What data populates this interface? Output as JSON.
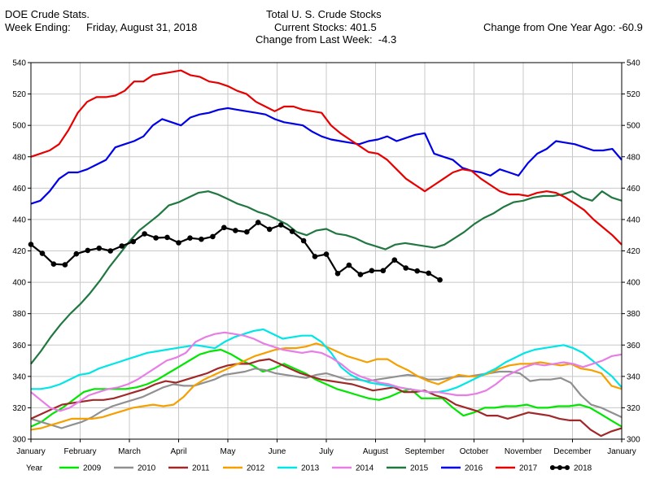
{
  "header": {
    "source": "DOE Crude Stats.",
    "week_label": "Week Ending:",
    "week_date": "Friday, August 31, 2018",
    "title": "Total U. S. Crude Stocks",
    "current_stocks": "Current Stocks: 401.5",
    "change_last_week": "Change from Last Week:  -4.3",
    "change_year_ago": "Change from One Year Ago: -60.9"
  },
  "chart_data": {
    "type": "line",
    "ylim": [
      300,
      540
    ],
    "y_ticks": [
      300,
      320,
      340,
      360,
      380,
      400,
      420,
      440,
      460,
      480,
      500,
      520,
      540
    ],
    "x_range_weeks": [
      0,
      52
    ],
    "month_labels": [
      "January",
      "February",
      "March",
      "April",
      "May",
      "June",
      "July",
      "August",
      "September",
      "October",
      "November",
      "December",
      "January"
    ],
    "grid": true,
    "legend_title": "Year",
    "legend_position": "bottom",
    "series": [
      {
        "name": "2009",
        "color": "#00e600",
        "markers": false,
        "values": [
          308,
          311,
          316,
          320,
          325,
          330,
          332,
          332,
          332,
          332,
          333,
          335,
          338,
          342,
          346,
          350,
          354,
          356,
          357,
          354,
          350,
          347,
          343,
          345,
          348,
          345,
          342,
          338,
          335,
          332,
          330,
          328,
          326,
          325,
          327,
          330,
          332,
          326,
          326,
          326,
          320,
          315,
          317,
          320,
          320,
          321,
          321,
          322,
          320,
          320,
          321,
          321,
          322,
          320,
          316,
          312,
          308
        ]
      },
      {
        "name": "2010",
        "color": "#909090",
        "markers": false,
        "values": [
          313,
          311,
          309,
          307,
          309,
          311,
          314,
          318,
          321,
          323,
          325,
          327,
          330,
          333,
          335,
          334,
          334,
          336,
          338,
          341,
          342,
          343,
          345,
          344,
          342,
          341,
          340,
          339,
          341,
          342,
          340,
          338,
          338,
          337,
          338,
          339,
          340,
          341,
          340,
          338,
          338,
          339,
          340,
          340,
          341,
          342,
          343,
          343,
          342,
          337,
          338,
          338,
          339,
          336,
          328,
          322,
          320,
          317,
          314
        ]
      },
      {
        "name": "2011",
        "color": "#a02828",
        "markers": false,
        "values": [
          313,
          316,
          319,
          322,
          323,
          324,
          325,
          325,
          326,
          328,
          330,
          332,
          335,
          337,
          336,
          338,
          340,
          342,
          345,
          347,
          348,
          348,
          350,
          351,
          348,
          345,
          342,
          340,
          338,
          337,
          336,
          335,
          333,
          331,
          332,
          333,
          330,
          330,
          331,
          328,
          326,
          322,
          320,
          318,
          315,
          315,
          313,
          315,
          317,
          316,
          315,
          313,
          312,
          312,
          306,
          302,
          305,
          307
        ]
      },
      {
        "name": "2012",
        "color": "#f5a000",
        "markers": false,
        "values": [
          306,
          307,
          309,
          311,
          313,
          313,
          313,
          314,
          316,
          318,
          320,
          321,
          322,
          321,
          322,
          327,
          334,
          338,
          341,
          344,
          347,
          350,
          353,
          355,
          357,
          358,
          358,
          359,
          361,
          359,
          356,
          353,
          351,
          349,
          351,
          351,
          347,
          344,
          340,
          337,
          335,
          338,
          341,
          340,
          340,
          342,
          345,
          347,
          348,
          348,
          349,
          348,
          347,
          348,
          345,
          344,
          342,
          334,
          332
        ]
      },
      {
        "name": "2013",
        "color": "#00e6e6",
        "markers": false,
        "values": [
          332,
          332,
          333,
          335,
          338,
          341,
          342,
          345,
          347,
          349,
          351,
          353,
          355,
          356,
          357,
          358,
          359,
          360,
          359,
          358,
          362,
          365,
          367,
          369,
          370,
          367,
          364,
          365,
          366,
          366,
          362,
          355,
          346,
          341,
          338,
          336,
          335,
          334,
          333,
          332,
          331,
          330,
          330,
          331,
          333,
          336,
          339,
          342,
          345,
          349,
          352,
          355,
          357,
          358,
          359,
          360,
          358,
          355,
          350,
          345,
          340,
          333
        ]
      },
      {
        "name": "2014",
        "color": "#e67ee6",
        "markers": false,
        "values": [
          330,
          325,
          320,
          318,
          320,
          324,
          328,
          330,
          332,
          333,
          335,
          338,
          342,
          346,
          350,
          352,
          355,
          362,
          365,
          367,
          368,
          367,
          366,
          364,
          361,
          359,
          357,
          356,
          355,
          356,
          355,
          352,
          348,
          343,
          340,
          338,
          336,
          335,
          333,
          332,
          331,
          330,
          330,
          329,
          328,
          328,
          329,
          331,
          335,
          340,
          343,
          346,
          348,
          347,
          348,
          349,
          348,
          346,
          348,
          350,
          353,
          354
        ]
      },
      {
        "name": "2015",
        "color": "#207840",
        "markers": false,
        "values": [
          348,
          356,
          365,
          373,
          380,
          386,
          393,
          401,
          410,
          418,
          426,
          433,
          438,
          443,
          449,
          451,
          454,
          457,
          458,
          456,
          453,
          450,
          448,
          445,
          443,
          440,
          437,
          432,
          430,
          433,
          434,
          431,
          430,
          428,
          425,
          423,
          421,
          424,
          425,
          424,
          423,
          422,
          424,
          428,
          432,
          437,
          441,
          444,
          448,
          451,
          452,
          454,
          455,
          455,
          456,
          458,
          454,
          452,
          458,
          454,
          452
        ]
      },
      {
        "name": "2016",
        "color": "#0000e6",
        "markers": false,
        "values": [
          450,
          452,
          458,
          466,
          470,
          470,
          472,
          475,
          478,
          486,
          488,
          490,
          493,
          500,
          504,
          502,
          500,
          505,
          507,
          508,
          510,
          511,
          510,
          509,
          508,
          507,
          504,
          502,
          501,
          500,
          496,
          493,
          491,
          490,
          489,
          488,
          490,
          491,
          493,
          490,
          492,
          494,
          495,
          482,
          480,
          478,
          473,
          471,
          470,
          468,
          472,
          470,
          468,
          476,
          482,
          485,
          490,
          489,
          488,
          486,
          484,
          484,
          485,
          478
        ]
      },
      {
        "name": "2017",
        "color": "#e60000",
        "markers": false,
        "values": [
          480,
          482,
          484,
          488,
          497,
          508,
          515,
          518,
          518,
          519,
          522,
          528,
          528,
          532,
          533,
          534,
          535,
          532,
          531,
          528,
          527,
          525,
          522,
          520,
          515,
          512,
          509,
          512,
          512,
          510,
          509,
          508,
          500,
          495,
          491,
          487,
          483,
          482,
          478,
          472,
          466,
          462,
          458,
          462,
          466,
          470,
          472,
          471,
          466,
          462,
          458,
          456,
          456,
          455,
          457,
          458,
          457,
          454,
          450,
          446,
          440,
          435,
          430,
          424
        ]
      },
      {
        "name": "2018",
        "color": "#000000",
        "markers": true,
        "values": [
          424.1,
          418.4,
          411.6,
          411.2,
          418.1,
          420.3,
          421.7,
          420.0,
          423.1,
          425.9,
          430.9,
          428.3,
          428.6,
          425.2,
          428.2,
          427.4,
          429.1,
          434.9,
          433.0,
          432.1,
          438.1,
          433.8,
          436.6,
          432.4,
          426.5,
          416.4,
          417.9,
          405.6,
          410.9,
          404.9,
          407.4,
          407.4,
          414.2,
          409.1,
          407.2,
          405.8,
          401.5
        ]
      }
    ]
  }
}
